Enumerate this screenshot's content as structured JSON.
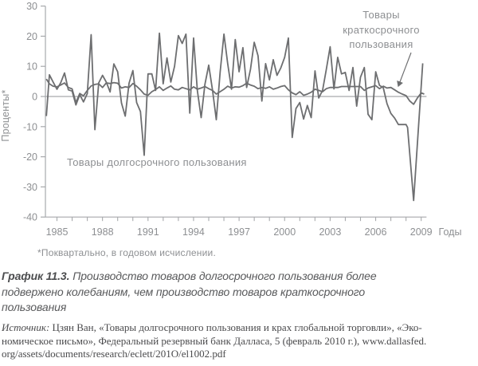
{
  "chart_data": {
    "type": "line",
    "title": "",
    "ylabel": "Проценты*",
    "xlabel": "Годы",
    "ylim": [
      -40,
      30
    ],
    "y_ticks": [
      30,
      20,
      10,
      0,
      -10,
      -20,
      -30,
      -40
    ],
    "x_tick_years_start": 1985,
    "x_tick_years_end": 2009,
    "x_label_years": [
      1985,
      1988,
      1991,
      1994,
      1997,
      2000,
      2003,
      2006,
      2009
    ],
    "grid": "zero-line-only",
    "legend_position": "in-plot-annotations",
    "series": [
      {
        "name": "Товары долгосрочного пользования",
        "points": [
          [
            1984.3,
            -6.5
          ],
          [
            1984.5,
            7.2
          ],
          [
            1984.75,
            4.8
          ],
          [
            1985,
            2.4
          ],
          [
            1985.25,
            4.6
          ],
          [
            1985.5,
            7.8
          ],
          [
            1985.75,
            2.2
          ],
          [
            1986,
            1.8
          ],
          [
            1986.25,
            -2.8
          ],
          [
            1986.5,
            0.6
          ],
          [
            1986.75,
            -1.8
          ],
          [
            1987,
            1
          ],
          [
            1987.25,
            20.5
          ],
          [
            1987.5,
            -11
          ],
          [
            1987.75,
            4.5
          ],
          [
            1988,
            7
          ],
          [
            1988.25,
            4.8
          ],
          [
            1988.5,
            1.5
          ],
          [
            1988.75,
            10.8
          ],
          [
            1989,
            8.2
          ],
          [
            1989.25,
            -2.2
          ],
          [
            1989.5,
            -6.5
          ],
          [
            1989.75,
            4.4
          ],
          [
            1990,
            8.6
          ],
          [
            1990.25,
            -2
          ],
          [
            1990.5,
            -5
          ],
          [
            1990.75,
            -19.5
          ],
          [
            1991,
            7.5
          ],
          [
            1991.25,
            7.5
          ],
          [
            1991.5,
            2
          ],
          [
            1991.75,
            21
          ],
          [
            1992,
            4.2
          ],
          [
            1992.25,
            12.8
          ],
          [
            1992.5,
            4.8
          ],
          [
            1992.75,
            10
          ],
          [
            1993,
            20.2
          ],
          [
            1993.25,
            17.6
          ],
          [
            1993.5,
            20.7
          ],
          [
            1993.75,
            -5.5
          ],
          [
            1994,
            19.4
          ],
          [
            1994.25,
            2
          ],
          [
            1994.5,
            -7
          ],
          [
            1994.75,
            4
          ],
          [
            1995,
            10.4
          ],
          [
            1995.25,
            2
          ],
          [
            1995.5,
            -7.7
          ],
          [
            1995.75,
            8
          ],
          [
            1996,
            20.7
          ],
          [
            1996.25,
            10.9
          ],
          [
            1996.5,
            2.4
          ],
          [
            1996.75,
            18.9
          ],
          [
            1997,
            8.2
          ],
          [
            1997.25,
            16.2
          ],
          [
            1997.5,
            3
          ],
          [
            1997.75,
            9
          ],
          [
            1998,
            18
          ],
          [
            1998.25,
            13.5
          ],
          [
            1998.5,
            -1.5
          ],
          [
            1998.75,
            10.9
          ],
          [
            1999,
            5.5
          ],
          [
            1999.25,
            12.2
          ],
          [
            1999.5,
            7
          ],
          [
            1999.75,
            9.5
          ],
          [
            2000,
            13
          ],
          [
            2000.25,
            19.4
          ],
          [
            2000.5,
            -13.6
          ],
          [
            2000.75,
            -4
          ],
          [
            2001,
            -2
          ],
          [
            2001.25,
            -7.5
          ],
          [
            2001.5,
            -3
          ],
          [
            2001.75,
            -7
          ],
          [
            2002,
            8.5
          ],
          [
            2002.25,
            -0.5
          ],
          [
            2002.5,
            2
          ],
          [
            2002.75,
            9
          ],
          [
            2003,
            16.5
          ],
          [
            2003.25,
            2.5
          ],
          [
            2003.5,
            13
          ],
          [
            2003.75,
            7.5
          ],
          [
            2004,
            8
          ],
          [
            2004.25,
            2
          ],
          [
            2004.5,
            9.6
          ],
          [
            2004.75,
            -3.2
          ],
          [
            2005,
            6.4
          ],
          [
            2005.25,
            9.6
          ],
          [
            2005.5,
            -5.9
          ],
          [
            2005.75,
            -7.7
          ],
          [
            2006,
            8.2
          ],
          [
            2006.25,
            3.7
          ],
          [
            2006.5,
            2.9
          ],
          [
            2006.75,
            -2.4
          ],
          [
            2007,
            -5.6
          ],
          [
            2007.25,
            -7.2
          ],
          [
            2007.5,
            -9.3
          ],
          [
            2007.75,
            -9.3
          ],
          [
            2008,
            -9.3
          ],
          [
            2008.1,
            -10.3
          ],
          [
            2008.5,
            -34.5
          ],
          [
            2009.1,
            11
          ]
        ]
      },
      {
        "name": "Товары краткосрочного пользования",
        "points": [
          [
            1984.3,
            5.8
          ],
          [
            1984.5,
            4.2
          ],
          [
            1984.75,
            3.4
          ],
          [
            1985,
            3.2
          ],
          [
            1985.25,
            3.8
          ],
          [
            1985.5,
            4.5
          ],
          [
            1985.75,
            3
          ],
          [
            1986,
            2.5
          ],
          [
            1986.25,
            -2
          ],
          [
            1986.5,
            1
          ],
          [
            1986.75,
            0.2
          ],
          [
            1987,
            2
          ],
          [
            1987.25,
            3.5
          ],
          [
            1987.5,
            4
          ],
          [
            1987.75,
            4.2
          ],
          [
            1988,
            3
          ],
          [
            1988.25,
            4.5
          ],
          [
            1988.5,
            4.3
          ],
          [
            1988.75,
            4.6
          ],
          [
            1989,
            4.4
          ],
          [
            1989.25,
            2.8
          ],
          [
            1989.5,
            3.2
          ],
          [
            1989.75,
            3
          ],
          [
            1990,
            4.3
          ],
          [
            1990.25,
            3.4
          ],
          [
            1990.5,
            2.2
          ],
          [
            1990.75,
            0.8
          ],
          [
            1991,
            0.4
          ],
          [
            1991.25,
            1.6
          ],
          [
            1991.5,
            2.3
          ],
          [
            1991.75,
            3.2
          ],
          [
            1992,
            2
          ],
          [
            1992.25,
            2.8
          ],
          [
            1992.5,
            3.5
          ],
          [
            1992.75,
            2.4
          ],
          [
            1993,
            2.2
          ],
          [
            1993.25,
            3
          ],
          [
            1993.5,
            2.6
          ],
          [
            1993.75,
            2.2
          ],
          [
            1994,
            3.2
          ],
          [
            1994.25,
            2.4
          ],
          [
            1994.5,
            2.8
          ],
          [
            1994.75,
            3.3
          ],
          [
            1995,
            2.6
          ],
          [
            1995.25,
            2
          ],
          [
            1995.5,
            0.8
          ],
          [
            1995.75,
            1.6
          ],
          [
            1996,
            2.4
          ],
          [
            1996.25,
            3.4
          ],
          [
            1996.5,
            2.8
          ],
          [
            1996.75,
            3.2
          ],
          [
            1997,
            3.1
          ],
          [
            1997.25,
            3.6
          ],
          [
            1997.5,
            4.4
          ],
          [
            1997.75,
            3.8
          ],
          [
            1998,
            3.4
          ],
          [
            1998.25,
            2.6
          ],
          [
            1998.5,
            3
          ],
          [
            1998.75,
            2.7
          ],
          [
            1999,
            3.2
          ],
          [
            1999.25,
            2.4
          ],
          [
            1999.5,
            2.8
          ],
          [
            1999.75,
            3.3
          ],
          [
            2000,
            3.6
          ],
          [
            2000.25,
            2.2
          ],
          [
            2000.5,
            1.2
          ],
          [
            2000.75,
            0.6
          ],
          [
            2001,
            1.6
          ],
          [
            2001.25,
            0.4
          ],
          [
            2001.5,
            0.8
          ],
          [
            2001.75,
            1.4
          ],
          [
            2002,
            2.4
          ],
          [
            2002.25,
            2
          ],
          [
            2002.5,
            1.6
          ],
          [
            2002.75,
            2.6
          ],
          [
            2003,
            3
          ],
          [
            2003.25,
            3
          ],
          [
            2003.5,
            3
          ],
          [
            2003.75,
            3.3
          ],
          [
            2004,
            3.3
          ],
          [
            2004.25,
            3.3
          ],
          [
            2004.5,
            3.3
          ],
          [
            2004.75,
            3.3
          ],
          [
            2005,
            3.3
          ],
          [
            2005.25,
            2
          ],
          [
            2005.5,
            2.8
          ],
          [
            2005.75,
            3.2
          ],
          [
            2006,
            3.6
          ],
          [
            2006.25,
            2.6
          ],
          [
            2006.5,
            3.4
          ],
          [
            2006.75,
            2.8
          ],
          [
            2007,
            3
          ],
          [
            2007.25,
            2.2
          ],
          [
            2007.5,
            1.4
          ],
          [
            2007.75,
            0.8
          ],
          [
            2008,
            0.3
          ],
          [
            2008.25,
            -1.5
          ],
          [
            2008.5,
            -2.6
          ],
          [
            2008.75,
            -0.5
          ],
          [
            2009,
            1.2
          ],
          [
            2009.2,
            0.8
          ]
        ]
      }
    ],
    "annotations": {
      "durable_label": {
        "text": "Товары долгосрочного пользования"
      },
      "nondurable_label": {
        "lines": [
          "Товары",
          "краткосрочного",
          "пользования"
        ]
      },
      "arrow": {
        "x1": 516,
        "y1": 66,
        "x2": 500,
        "y2": 108
      }
    }
  },
  "axis": {
    "years_label": "Годы"
  },
  "footnote": {
    "text": "*Поквартально, в годовом исчислении."
  },
  "caption": {
    "label": "График 11.3.",
    "lines": [
      "Производство товаров долгосрочного пользования более",
      "подвержено колебаниям, чем производство товаров краткосрочного",
      "пользования"
    ]
  },
  "source": {
    "label": "Источник:",
    "lines": [
      "Цзян Ван, «Товары долгосрочного пользования и крах глобальной торговли», «Эко-",
      "номическое письмо», Федеральный резервный банк Далласа, 5 (февраль 2010 г.), www.dallasfed.",
      "org/assets/documents/research/eclett/201O/el1002.pdf"
    ]
  },
  "colors": {
    "series_line": "#6d6e70",
    "axis": "#a7a9ac",
    "zero_line": "#a7a9ac",
    "chart_text": "#8d8f92",
    "caption_text": "#58595b",
    "source_text": "#4a4a4c",
    "background": "#ffffff"
  }
}
